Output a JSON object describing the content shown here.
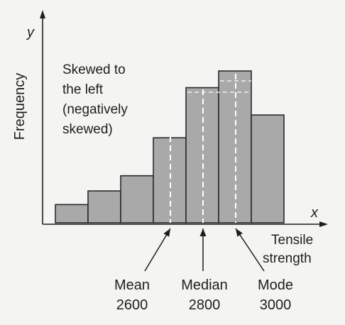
{
  "labels": {
    "y_axis_letter": "y",
    "x_axis_letter": "x",
    "y_axis_title": "Frequency",
    "x_axis_title_line1": "Tensile",
    "x_axis_title_line2": "strength",
    "skew_line1": "Skewed to",
    "skew_line2": "the left",
    "skew_line3": "(negatively",
    "skew_line4": "skewed)"
  },
  "markers": [
    {
      "name": "Mean",
      "value": "2600"
    },
    {
      "name": "Median",
      "value": "2800"
    },
    {
      "name": "Mode",
      "value": "3000"
    }
  ],
  "histogram": {
    "bar_heights_relative": [
      0.12,
      0.21,
      0.31,
      0.56,
      0.89,
      1.0,
      0.71
    ],
    "bar_color": "#a9a9a9",
    "outline_color": "#2a2a2a"
  }
}
